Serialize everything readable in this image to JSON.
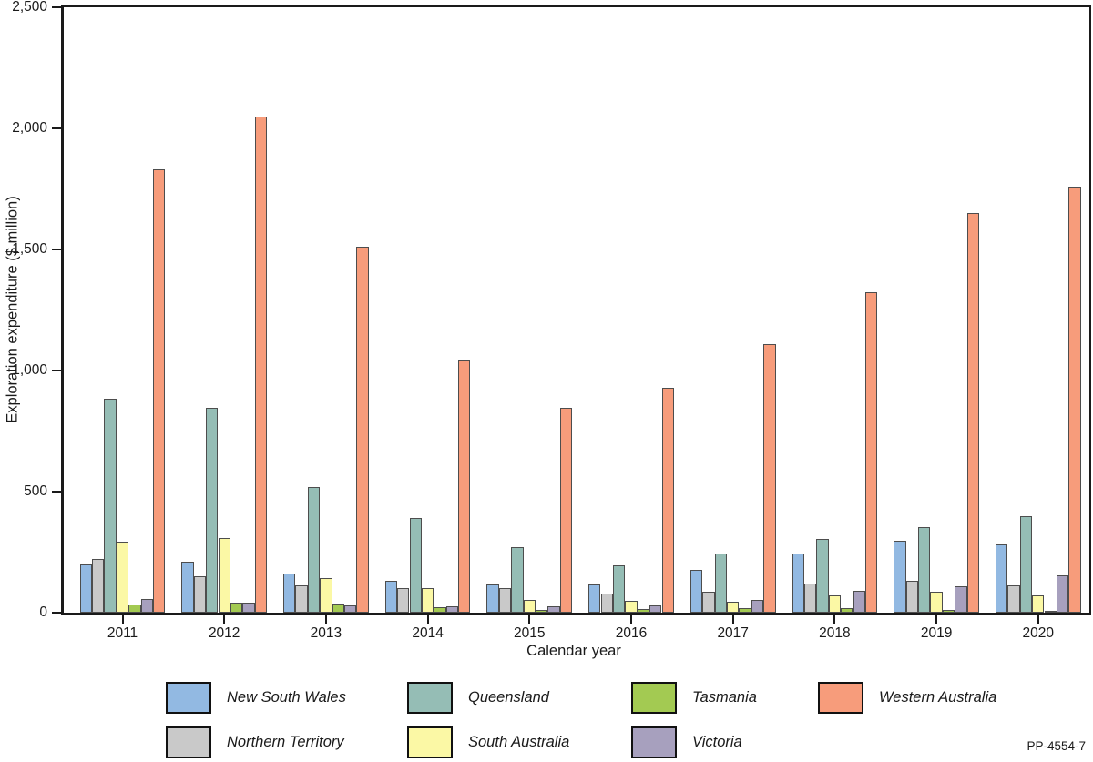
{
  "figure": {
    "code": "PP-4554-7"
  },
  "chart_data": {
    "type": "bar",
    "title": "",
    "xlabel": "Calendar year",
    "ylabel": "Exploration expenditure ($ million)",
    "ylim": [
      0,
      2500
    ],
    "ytick_step": 500,
    "ytick_labels": [
      "0",
      "500",
      "1,000",
      "1,500",
      "2,000",
      "2,500"
    ],
    "grid": "off",
    "categories": [
      "2011",
      "2012",
      "2013",
      "2014",
      "2015",
      "2016",
      "2017",
      "2018",
      "2019",
      "2020"
    ],
    "series": [
      {
        "name": "New South Wales",
        "color": "#92B9E2",
        "values": [
          200,
          210,
          162,
          132,
          117,
          117,
          177,
          245,
          296,
          282
        ]
      },
      {
        "name": "Northern Territory",
        "color": "#C9C9C9",
        "values": [
          220,
          150,
          112,
          102,
          100,
          80,
          88,
          122,
          132,
          111
        ]
      },
      {
        "name": "Queensland",
        "color": "#95BDB5",
        "values": [
          885,
          845,
          518,
          390,
          270,
          195,
          245,
          303,
          354,
          400
        ]
      },
      {
        "name": "South Australia",
        "color": "#FBF8A5",
        "values": [
          295,
          310,
          143,
          103,
          53,
          48,
          46,
          73,
          85,
          73
        ]
      },
      {
        "name": "Tasmania",
        "color": "#A3CA52",
        "values": [
          32,
          40,
          38,
          22,
          13,
          15,
          20,
          19,
          13,
          8
        ]
      },
      {
        "name": "Victoria",
        "color": "#A7A0BE",
        "values": [
          55,
          43,
          30,
          28,
          28,
          31,
          52,
          91,
          110,
          153
        ]
      },
      {
        "name": "Western Australia",
        "color": "#F79C7B",
        "values": [
          1830,
          2050,
          1510,
          1045,
          845,
          930,
          1108,
          1322,
          1650,
          1760
        ]
      }
    ],
    "legend": {
      "position": "bottom",
      "items": [
        {
          "label": "New South Wales",
          "color": "#92B9E2",
          "row": 0,
          "col": 0
        },
        {
          "label": "Queensland",
          "color": "#95BDB5",
          "row": 0,
          "col": 1
        },
        {
          "label": "Tasmania",
          "color": "#A3CA52",
          "row": 0,
          "col": 2
        },
        {
          "label": "Western Australia",
          "color": "#F79C7B",
          "row": 0,
          "col": 3
        },
        {
          "label": "Northern Territory",
          "color": "#C9C9C9",
          "row": 1,
          "col": 0
        },
        {
          "label": "South Australia",
          "color": "#FBF8A5",
          "row": 1,
          "col": 1
        },
        {
          "label": "Victoria",
          "color": "#A7A0BE",
          "row": 1,
          "col": 2
        }
      ]
    }
  }
}
